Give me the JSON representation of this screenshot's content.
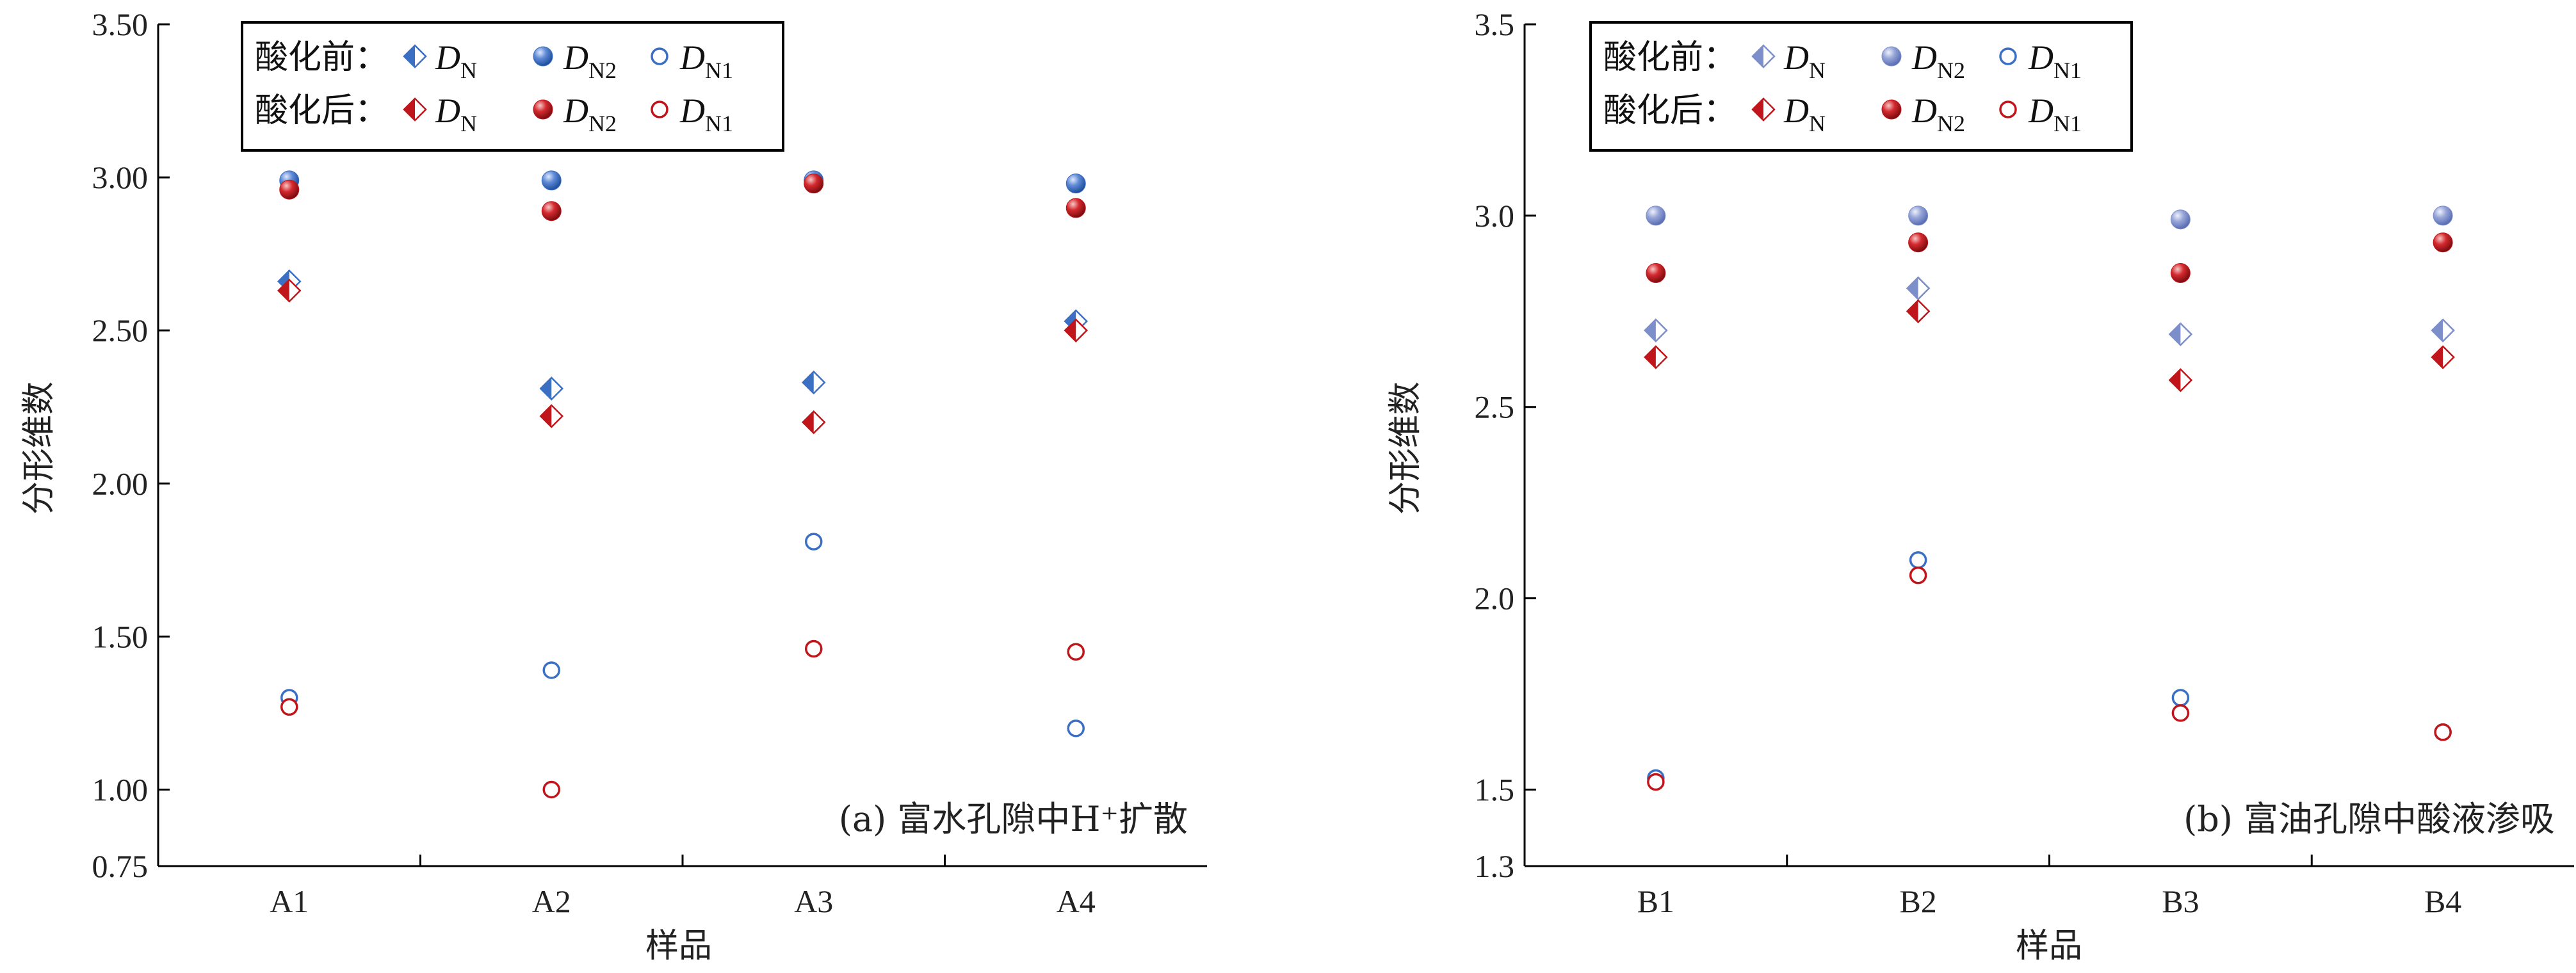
{
  "chart_data": [
    {
      "type": "scatter",
      "ylabel": "分形维数",
      "xlabel": "样品",
      "annotation": "(a) 富水孔隙中H⁺扩散",
      "categories": [
        "A1",
        "A2",
        "A3",
        "A4"
      ],
      "ylim": [
        0.75,
        3.5
      ],
      "yticks": [
        "0.75",
        "1.00",
        "1.50",
        "2.00",
        "2.50",
        "3.00",
        "3.50"
      ],
      "legend": {
        "placement": "top-left",
        "row_labels": [
          "酸化前：",
          "酸化后："
        ],
        "symbols": [
          {
            "main": "D",
            "sub": "N"
          },
          {
            "main": "D",
            "sub": "N2"
          },
          {
            "main": "D",
            "sub": "N1"
          }
        ]
      },
      "series": [
        {
          "stage": "酸化前",
          "symbol": "D_N",
          "marker": "diamond-half",
          "color": "#3a6fc4",
          "values": [
            2.66,
            2.31,
            2.33,
            2.53
          ]
        },
        {
          "stage": "酸化前",
          "symbol": "D_N2",
          "marker": "ball",
          "color": "#3a6fc4",
          "values": [
            2.99,
            2.99,
            2.99,
            2.98
          ]
        },
        {
          "stage": "酸化前",
          "symbol": "D_N1",
          "marker": "ring",
          "color": "#3a6fc4",
          "values": [
            1.3,
            1.39,
            1.81,
            1.2
          ]
        },
        {
          "stage": "酸化后",
          "symbol": "D_N",
          "marker": "diamond-half",
          "color": "#c0161b",
          "values": [
            2.63,
            2.22,
            2.2,
            2.5
          ]
        },
        {
          "stage": "酸化后",
          "symbol": "D_N2",
          "marker": "ball",
          "color": "#c0161b",
          "values": [
            2.96,
            2.89,
            2.98,
            2.9
          ]
        },
        {
          "stage": "酸化后",
          "symbol": "D_N1",
          "marker": "ring",
          "color": "#c0161b",
          "values": [
            1.27,
            1.0,
            1.46,
            1.45
          ]
        }
      ]
    },
    {
      "type": "scatter",
      "ylabel": "分形维数",
      "xlabel": "样品",
      "annotation": "(b) 富油孔隙中酸液渗吸",
      "categories": [
        "B1",
        "B2",
        "B3",
        "B4"
      ],
      "ylim": [
        1.3,
        3.5
      ],
      "yticks": [
        "1.3",
        "1.5",
        "2.0",
        "2.5",
        "3.0",
        "3.5"
      ],
      "legend": {
        "placement": "top-left",
        "row_labels": [
          "酸化前：",
          "酸化后："
        ],
        "symbols": [
          {
            "main": "D",
            "sub": "N"
          },
          {
            "main": "D",
            "sub": "N2"
          },
          {
            "main": "D",
            "sub": "N1"
          }
        ]
      },
      "series": [
        {
          "stage": "酸化前",
          "symbol": "D_N",
          "marker": "diamond-half",
          "color": "#7d8fca",
          "values": [
            2.7,
            2.81,
            2.69,
            2.7
          ]
        },
        {
          "stage": "酸化前",
          "symbol": "D_N2",
          "marker": "ball",
          "color": "#7d8fca",
          "values": [
            3.0,
            3.0,
            2.99,
            3.0
          ]
        },
        {
          "stage": "酸化前",
          "symbol": "D_N1",
          "marker": "ring",
          "color": "#3a6fc4",
          "values": [
            1.53,
            2.1,
            1.74,
            1.65
          ]
        },
        {
          "stage": "酸化后",
          "symbol": "D_N",
          "marker": "diamond-half",
          "color": "#c0161b",
          "values": [
            2.63,
            2.75,
            2.57,
            2.63
          ]
        },
        {
          "stage": "酸化后",
          "symbol": "D_N2",
          "marker": "ball",
          "color": "#c0161b",
          "values": [
            2.85,
            2.93,
            2.85,
            2.93
          ]
        },
        {
          "stage": "酸化后",
          "symbol": "D_N1",
          "marker": "ring",
          "color": "#c0161b",
          "values": [
            1.52,
            2.06,
            1.7,
            1.65
          ]
        }
      ]
    }
  ]
}
